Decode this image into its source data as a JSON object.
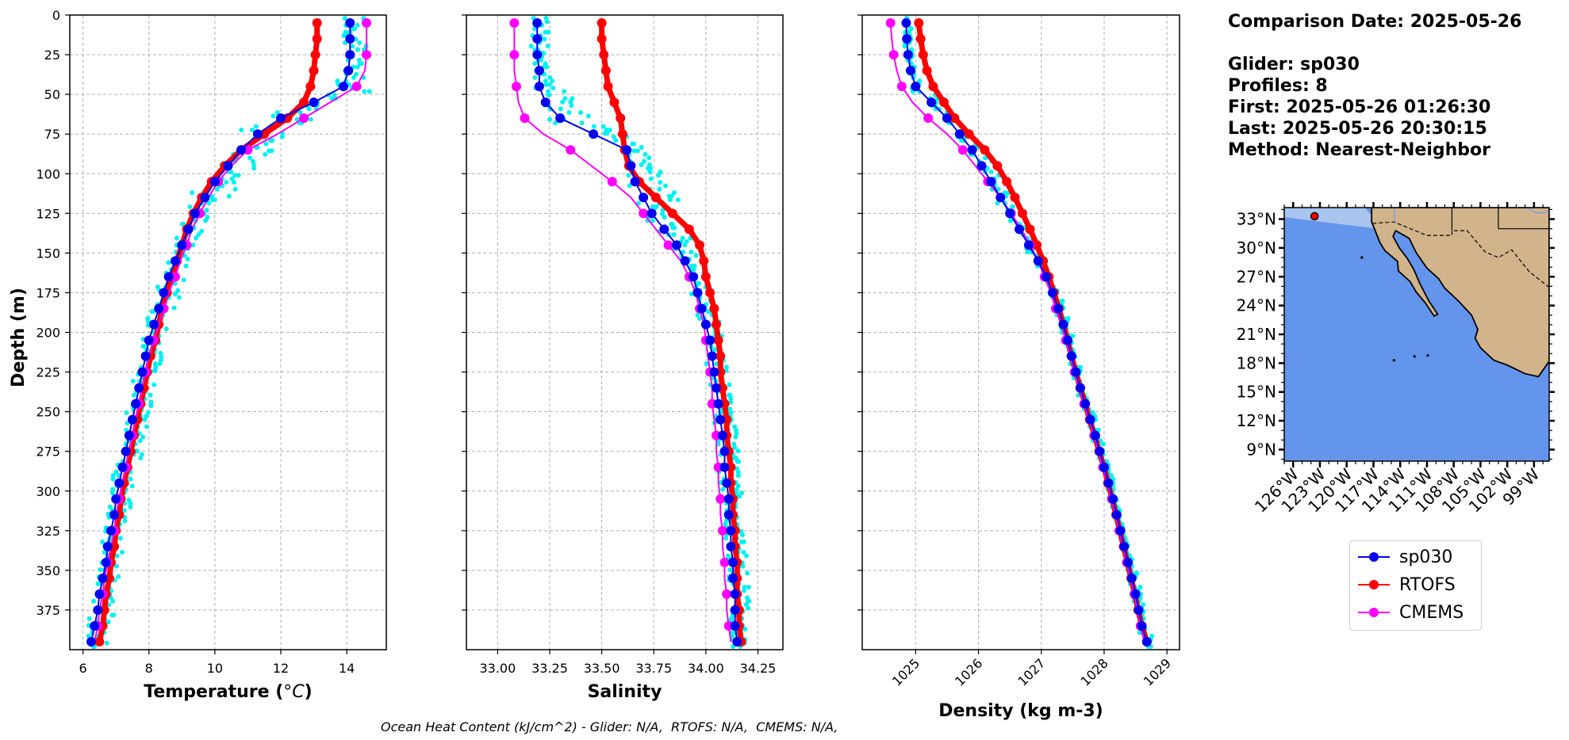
{
  "info": {
    "date_line": "Comparison Date: 2025-05-26",
    "glider_line": "Glider: sp030",
    "profiles_line": "Profiles: 8",
    "first_line": "First: 2025-05-26 01:26:30",
    "last_line": "Last: 2025-05-26 20:30:15",
    "method_line": "Method: Nearest-Neighbor"
  },
  "footer": "Ocean Heat Content (kJ/cm^2) - Glider: N/A,  RTOFS: N/A,  CMEMS: N/A,",
  "colors": {
    "glider": "#0000ee",
    "rtofs": "#ff0000",
    "cmems": "#ff00ff",
    "raw": "#00f0f0",
    "ocean": "#6495ed",
    "land": "#d2b48c"
  },
  "legend": [
    {
      "label": "sp030",
      "color": "#0000ee"
    },
    {
      "label": "RTOFS",
      "color": "#ff0000"
    },
    {
      "label": "CMEMS",
      "color": "#ff00ff"
    }
  ],
  "chart_data": [
    {
      "type": "line",
      "xlabel": "Temperature (°C)",
      "ylabel": "Depth (m)",
      "xlim": [
        5.6,
        15.2
      ],
      "ylim": [
        400,
        0
      ],
      "xticks": [
        6,
        8,
        10,
        12,
        14
      ],
      "yticks": [
        0,
        25,
        50,
        75,
        100,
        125,
        150,
        175,
        200,
        225,
        250,
        275,
        300,
        325,
        350,
        375
      ],
      "grid": true,
      "depth": [
        5,
        15,
        25,
        35,
        45,
        55,
        65,
        75,
        85,
        95,
        105,
        115,
        125,
        135,
        145,
        155,
        165,
        175,
        185,
        195,
        205,
        215,
        225,
        235,
        245,
        255,
        265,
        275,
        285,
        295,
        305,
        315,
        325,
        335,
        345,
        355,
        365,
        375,
        385,
        395
      ],
      "series": [
        {
          "name": "sp030",
          "values": [
            14.1,
            14.1,
            14.1,
            14.05,
            13.9,
            13.0,
            12.0,
            11.3,
            10.8,
            10.4,
            10.0,
            9.7,
            9.4,
            9.2,
            9.0,
            8.8,
            8.6,
            8.45,
            8.3,
            8.15,
            8.0,
            7.9,
            7.8,
            7.7,
            7.6,
            7.5,
            7.4,
            7.3,
            7.2,
            7.1,
            7.0,
            6.95,
            6.85,
            6.75,
            6.7,
            6.6,
            6.5,
            6.45,
            6.35,
            6.25
          ]
        },
        {
          "name": "RTOFS",
          "values": [
            13.1,
            13.1,
            13.05,
            13.0,
            12.9,
            12.7,
            12.2,
            11.5,
            10.8,
            10.3,
            9.9,
            9.6,
            9.35,
            9.15,
            9.0,
            8.85,
            8.7,
            8.55,
            8.4,
            8.3,
            8.2,
            8.05,
            7.95,
            7.85,
            7.75,
            7.65,
            7.55,
            7.45,
            7.35,
            7.25,
            7.15,
            7.1,
            7.0,
            6.95,
            6.85,
            6.8,
            6.7,
            6.65,
            6.6,
            6.5
          ]
        },
        {
          "name": "CMEMS",
          "values": [
            14.6,
            14.6,
            14.6,
            14.55,
            14.3,
            13.5,
            12.7,
            11.9,
            11.0,
            10.5,
            10.1,
            9.8,
            9.55,
            9.3,
            9.15,
            8.95,
            8.8,
            8.6,
            8.45,
            8.3,
            8.15,
            8.0,
            7.9,
            7.8,
            7.7,
            7.6,
            7.5,
            7.4,
            7.3,
            7.2,
            7.1,
            7.0,
            6.95,
            6.85,
            6.75,
            6.65,
            6.6,
            6.5,
            6.45,
            6.35
          ]
        }
      ]
    },
    {
      "type": "line",
      "xlabel": "Salinity",
      "ylabel": "",
      "xlim": [
        32.85,
        34.37
      ],
      "ylim": [
        400,
        0
      ],
      "xticks": [
        33.0,
        33.25,
        33.5,
        33.75,
        34.0,
        34.25
      ],
      "yticks": [
        0,
        25,
        50,
        75,
        100,
        125,
        150,
        175,
        200,
        225,
        250,
        275,
        300,
        325,
        350,
        375
      ],
      "grid": true,
      "depth": [
        5,
        15,
        25,
        35,
        45,
        55,
        65,
        75,
        85,
        95,
        105,
        115,
        125,
        135,
        145,
        155,
        165,
        175,
        185,
        195,
        205,
        215,
        225,
        235,
        245,
        255,
        265,
        275,
        285,
        295,
        305,
        315,
        325,
        335,
        345,
        355,
        365,
        375,
        385,
        395
      ],
      "series": [
        {
          "name": "sp030",
          "values": [
            33.19,
            33.19,
            33.19,
            33.2,
            33.2,
            33.23,
            33.3,
            33.46,
            33.62,
            33.64,
            33.66,
            33.7,
            33.74,
            33.8,
            33.86,
            33.9,
            33.94,
            33.96,
            33.98,
            34.0,
            34.02,
            34.03,
            34.04,
            34.05,
            34.06,
            34.07,
            34.08,
            34.09,
            34.09,
            34.1,
            34.11,
            34.11,
            34.12,
            34.12,
            34.13,
            34.13,
            34.14,
            34.14,
            34.14,
            34.15
          ]
        },
        {
          "name": "RTOFS",
          "values": [
            33.5,
            33.5,
            33.51,
            33.52,
            33.53,
            33.56,
            33.59,
            33.6,
            33.61,
            33.63,
            33.68,
            33.76,
            33.84,
            33.92,
            33.97,
            33.99,
            34.0,
            34.02,
            34.04,
            34.05,
            34.06,
            34.07,
            34.07,
            34.08,
            34.09,
            34.1,
            34.1,
            34.11,
            34.12,
            34.12,
            34.13,
            34.13,
            34.14,
            34.14,
            34.15,
            34.15,
            34.15,
            34.16,
            34.16,
            34.17
          ]
        },
        {
          "name": "CMEMS",
          "values": [
            33.08,
            33.08,
            33.08,
            33.08,
            33.09,
            33.1,
            33.13,
            33.22,
            33.35,
            33.45,
            33.55,
            33.64,
            33.7,
            33.76,
            33.82,
            33.88,
            33.92,
            33.95,
            33.97,
            33.99,
            34.0,
            34.01,
            34.02,
            34.03,
            34.03,
            34.04,
            34.05,
            34.05,
            34.06,
            34.06,
            34.07,
            34.07,
            34.08,
            34.08,
            34.09,
            34.09,
            34.1,
            34.1,
            34.11,
            34.12
          ]
        }
      ]
    },
    {
      "type": "line",
      "xlabel": "Density (kg m-3)",
      "ylabel": "",
      "xlim": [
        1024.15,
        1029.2
      ],
      "ylim": [
        400,
        0
      ],
      "xticks": [
        1025,
        1026,
        1027,
        1028,
        1029
      ],
      "yticks": [
        0,
        25,
        50,
        75,
        100,
        125,
        150,
        175,
        200,
        225,
        250,
        275,
        300,
        325,
        350,
        375
      ],
      "grid": true,
      "depth": [
        5,
        15,
        25,
        35,
        45,
        55,
        65,
        75,
        85,
        95,
        105,
        115,
        125,
        135,
        145,
        155,
        165,
        175,
        185,
        195,
        205,
        215,
        225,
        235,
        245,
        255,
        265,
        275,
        285,
        295,
        305,
        315,
        325,
        335,
        345,
        355,
        365,
        375,
        385,
        395
      ],
      "series": [
        {
          "name": "sp030",
          "values": [
            1024.85,
            1024.86,
            1024.88,
            1024.92,
            1025.0,
            1025.25,
            1025.5,
            1025.7,
            1025.9,
            1026.05,
            1026.2,
            1026.35,
            1026.5,
            1026.65,
            1026.8,
            1026.95,
            1027.08,
            1027.18,
            1027.27,
            1027.35,
            1027.42,
            1027.48,
            1027.55,
            1027.62,
            1027.7,
            1027.78,
            1027.86,
            1027.93,
            1028.0,
            1028.07,
            1028.14,
            1028.2,
            1028.26,
            1028.32,
            1028.38,
            1028.44,
            1028.5,
            1028.55,
            1028.6,
            1028.68
          ]
        },
        {
          "name": "RTOFS",
          "values": [
            1025.05,
            1025.08,
            1025.12,
            1025.18,
            1025.28,
            1025.45,
            1025.62,
            1025.85,
            1026.1,
            1026.3,
            1026.45,
            1026.58,
            1026.7,
            1026.82,
            1026.93,
            1027.03,
            1027.12,
            1027.2,
            1027.28,
            1027.35,
            1027.42,
            1027.48,
            1027.55,
            1027.62,
            1027.7,
            1027.77,
            1027.85,
            1027.92,
            1028.0,
            1028.06,
            1028.13,
            1028.19,
            1028.25,
            1028.31,
            1028.37,
            1028.43,
            1028.49,
            1028.54,
            1028.6,
            1028.68
          ]
        },
        {
          "name": "CMEMS",
          "values": [
            1024.6,
            1024.62,
            1024.65,
            1024.7,
            1024.78,
            1024.95,
            1025.2,
            1025.5,
            1025.75,
            1025.95,
            1026.15,
            1026.35,
            1026.52,
            1026.68,
            1026.82,
            1026.95,
            1027.05,
            1027.15,
            1027.23,
            1027.31,
            1027.39,
            1027.46,
            1027.53,
            1027.6,
            1027.68,
            1027.76,
            1027.84,
            1027.91,
            1027.98,
            1028.05,
            1028.12,
            1028.18,
            1028.24,
            1028.3,
            1028.36,
            1028.42,
            1028.48,
            1028.53,
            1028.58,
            1028.64
          ]
        }
      ]
    },
    {
      "type": "map",
      "lat_ticks": [
        "33°N",
        "30°N",
        "27°N",
        "24°N",
        "21°N",
        "18°N",
        "15°N",
        "12°N",
        "9°N"
      ],
      "lon_ticks": [
        "126°W",
        "123°W",
        "120°W",
        "117°W",
        "114°W",
        "111°W",
        "108°W",
        "105°W",
        "102°W",
        "99°W"
      ],
      "marker": {
        "lon": -123.6,
        "lat": 33.3
      }
    }
  ]
}
